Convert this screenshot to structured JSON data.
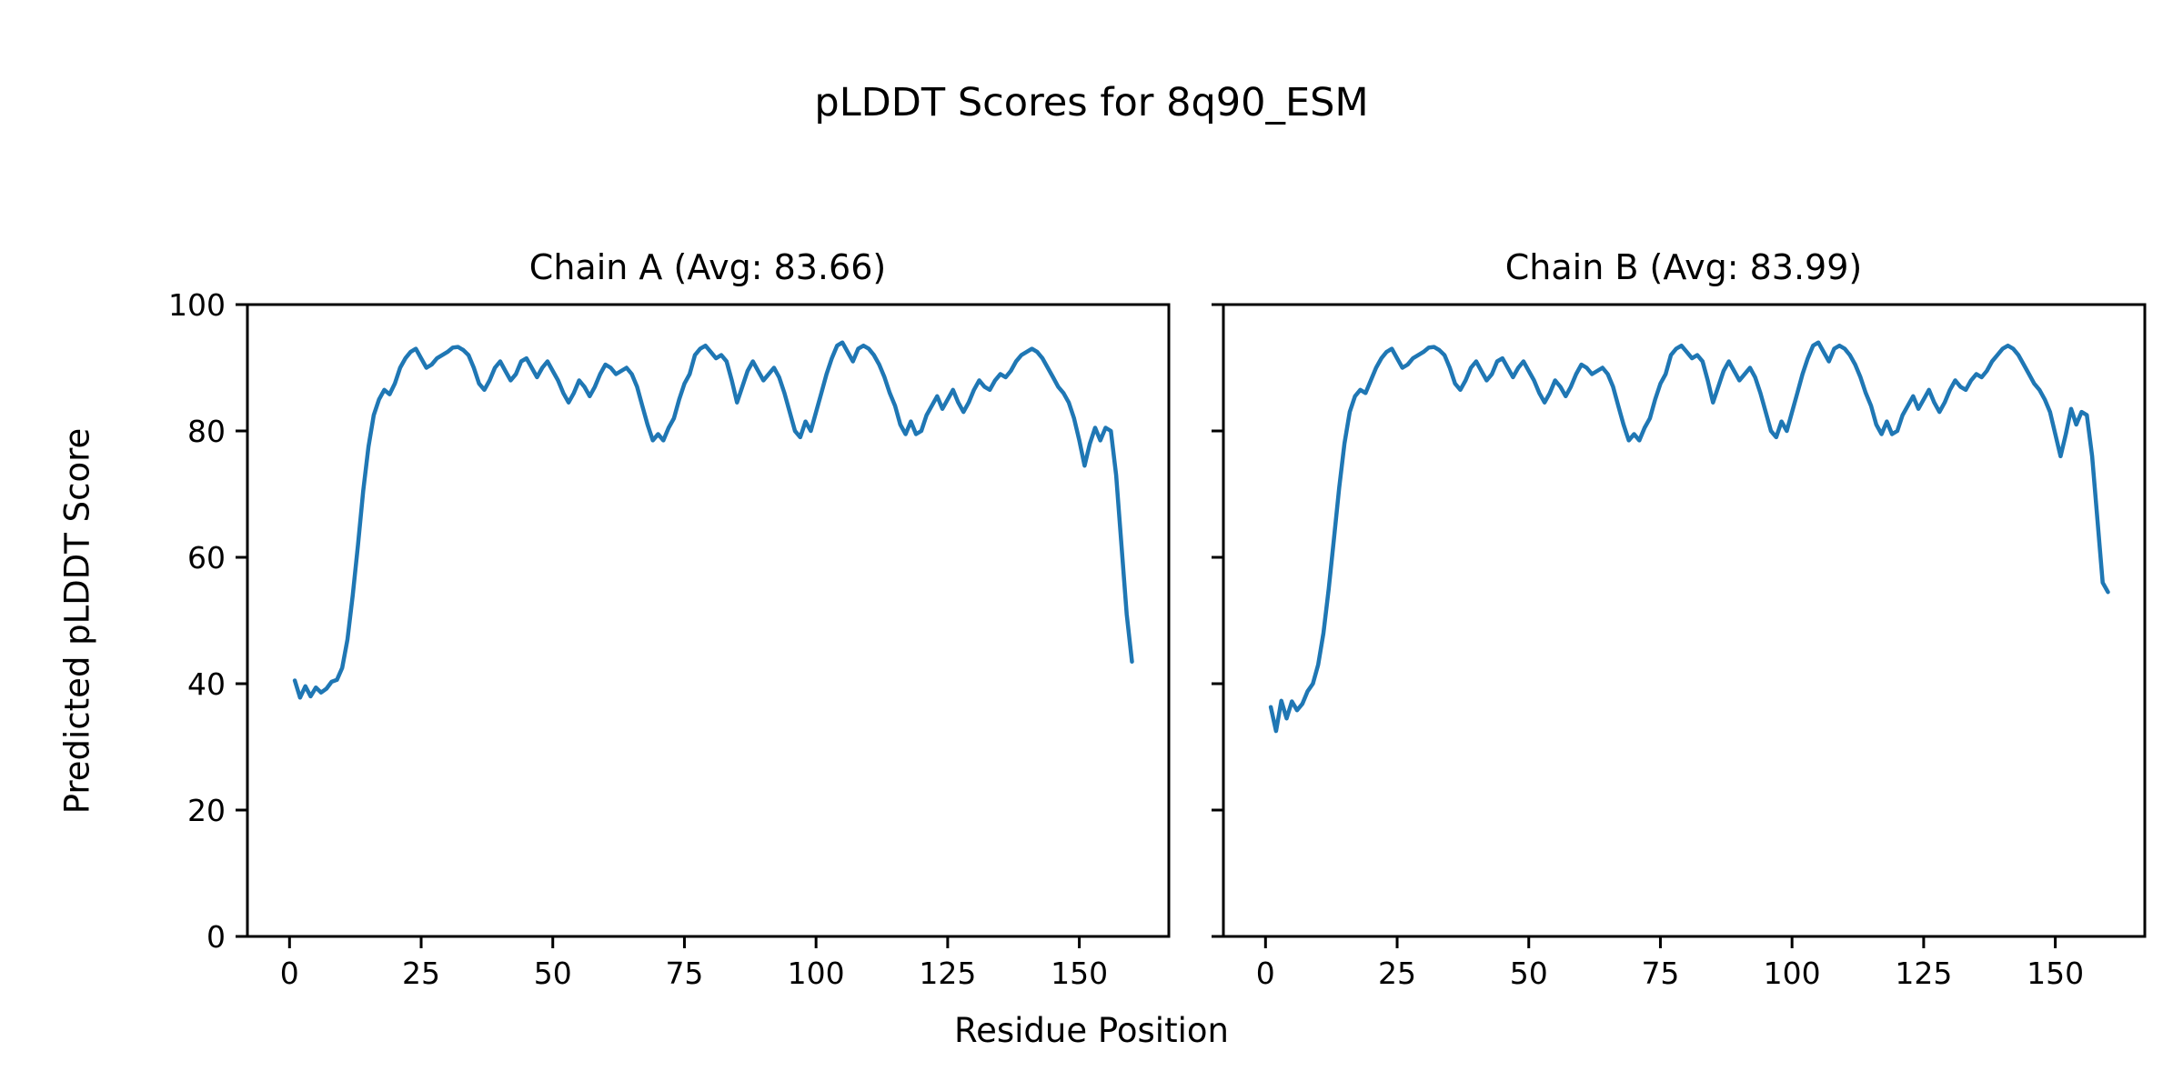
{
  "figure": {
    "title": "pLDDT Scores for 8q90_ESM",
    "xlabel": "Residue Position",
    "ylabel": "Predicted pLDDT Score",
    "background": "#ffffff",
    "text_color": "#000000"
  },
  "chart_data": [
    {
      "type": "line",
      "chain": "A",
      "title": "Chain A (Avg: 83.66)",
      "average_plddt": 83.66,
      "line_color": "#1f77b4",
      "grid": false,
      "legend": "none",
      "x_start": 1,
      "xlim": [
        -8,
        167
      ],
      "ylim": [
        0,
        100
      ],
      "x_ticks": [
        0,
        25,
        50,
        75,
        100,
        125,
        150
      ],
      "y_ticks": [
        0,
        20,
        40,
        60,
        80,
        100
      ],
      "show_y_tick_labels": true,
      "values": [
        40.5,
        37.8,
        39.6,
        38.0,
        39.4,
        38.6,
        39.2,
        40.3,
        40.6,
        42.5,
        47.0,
        54.0,
        62.0,
        70.5,
        77.5,
        82.5,
        85.0,
        86.5,
        85.8,
        87.5,
        90.0,
        91.5,
        92.5,
        93.0,
        91.5,
        90.0,
        90.5,
        91.5,
        92.0,
        92.5,
        93.2,
        93.3,
        92.8,
        92.0,
        90.0,
        87.5,
        86.5,
        88.0,
        90.0,
        91.0,
        89.5,
        88.0,
        89.0,
        91.0,
        91.5,
        90.0,
        88.5,
        90.0,
        91.0,
        89.5,
        88.0,
        86.0,
        84.5,
        86.0,
        88.0,
        87.0,
        85.5,
        87.0,
        89.0,
        90.5,
        90.0,
        89.0,
        89.5,
        90.0,
        89.0,
        87.0,
        84.0,
        81.0,
        78.5,
        79.5,
        78.5,
        80.5,
        82.0,
        85.0,
        87.5,
        89.0,
        92.0,
        93.0,
        93.5,
        92.5,
        91.5,
        92.0,
        91.0,
        88.0,
        84.5,
        87.0,
        89.5,
        91.0,
        89.5,
        88.0,
        89.0,
        90.0,
        88.5,
        86.0,
        83.0,
        80.0,
        79.0,
        81.5,
        80.0,
        83.0,
        86.0,
        89.0,
        91.5,
        93.5,
        94.0,
        92.5,
        91.0,
        93.0,
        93.5,
        93.0,
        92.0,
        90.5,
        88.5,
        86.0,
        84.0,
        81.0,
        79.5,
        81.5,
        79.5,
        80.0,
        82.5,
        84.0,
        85.5,
        83.5,
        85.0,
        86.5,
        84.5,
        83.0,
        84.5,
        86.5,
        88.0,
        87.0,
        86.5,
        88.0,
        89.0,
        88.5,
        89.5,
        91.0,
        92.0,
        92.5,
        93.0,
        92.5,
        91.5,
        90.0,
        88.5,
        87.0,
        86.0,
        84.5,
        82.0,
        78.5,
        74.5,
        78.0,
        80.5,
        78.5,
        80.5,
        80.0,
        73.0,
        62.0,
        51.0,
        43.5
      ]
    },
    {
      "type": "line",
      "chain": "B",
      "title": "Chain B (Avg: 83.99)",
      "average_plddt": 83.99,
      "line_color": "#1f77b4",
      "grid": false,
      "legend": "none",
      "x_start": 1,
      "xlim": [
        -8,
        167
      ],
      "ylim": [
        0,
        100
      ],
      "x_ticks": [
        0,
        25,
        50,
        75,
        100,
        125,
        150
      ],
      "y_ticks": [
        0,
        20,
        40,
        60,
        80,
        100
      ],
      "show_y_tick_labels": false,
      "values": [
        36.3,
        32.5,
        37.3,
        34.5,
        37.2,
        35.8,
        36.8,
        38.8,
        40.0,
        43.0,
        48.0,
        55.0,
        63.0,
        71.0,
        78.0,
        83.0,
        85.5,
        86.5,
        86.0,
        88.0,
        90.0,
        91.5,
        92.5,
        93.0,
        91.5,
        90.0,
        90.5,
        91.5,
        92.0,
        92.5,
        93.2,
        93.3,
        92.8,
        92.0,
        90.0,
        87.5,
        86.5,
        88.0,
        90.0,
        91.0,
        89.5,
        88.0,
        89.0,
        91.0,
        91.5,
        90.0,
        88.5,
        90.0,
        91.0,
        89.5,
        88.0,
        86.0,
        84.5,
        86.0,
        88.0,
        87.0,
        85.5,
        87.0,
        89.0,
        90.5,
        90.0,
        89.0,
        89.5,
        90.0,
        89.0,
        87.0,
        84.0,
        81.0,
        78.5,
        79.5,
        78.5,
        80.5,
        82.0,
        85.0,
        87.5,
        89.0,
        92.0,
        93.0,
        93.5,
        92.5,
        91.5,
        92.0,
        91.0,
        88.0,
        84.5,
        87.0,
        89.5,
        91.0,
        89.5,
        88.0,
        89.0,
        90.0,
        88.5,
        86.0,
        83.0,
        80.0,
        79.0,
        81.5,
        80.0,
        83.0,
        86.0,
        89.0,
        91.5,
        93.5,
        94.0,
        92.5,
        91.0,
        93.0,
        93.5,
        93.0,
        92.0,
        90.5,
        88.5,
        86.0,
        84.0,
        81.0,
        79.5,
        81.5,
        79.5,
        80.0,
        82.5,
        84.0,
        85.5,
        83.5,
        85.0,
        86.5,
        84.5,
        83.0,
        84.5,
        86.5,
        88.0,
        87.0,
        86.5,
        88.0,
        89.0,
        88.5,
        89.5,
        91.0,
        92.0,
        93.0,
        93.5,
        93.0,
        92.0,
        90.5,
        89.0,
        87.5,
        86.5,
        85.0,
        83.0,
        79.5,
        76.0,
        79.5,
        83.5,
        81.0,
        83.0,
        82.5,
        76.0,
        66.0,
        56.0,
        54.5
      ]
    }
  ]
}
